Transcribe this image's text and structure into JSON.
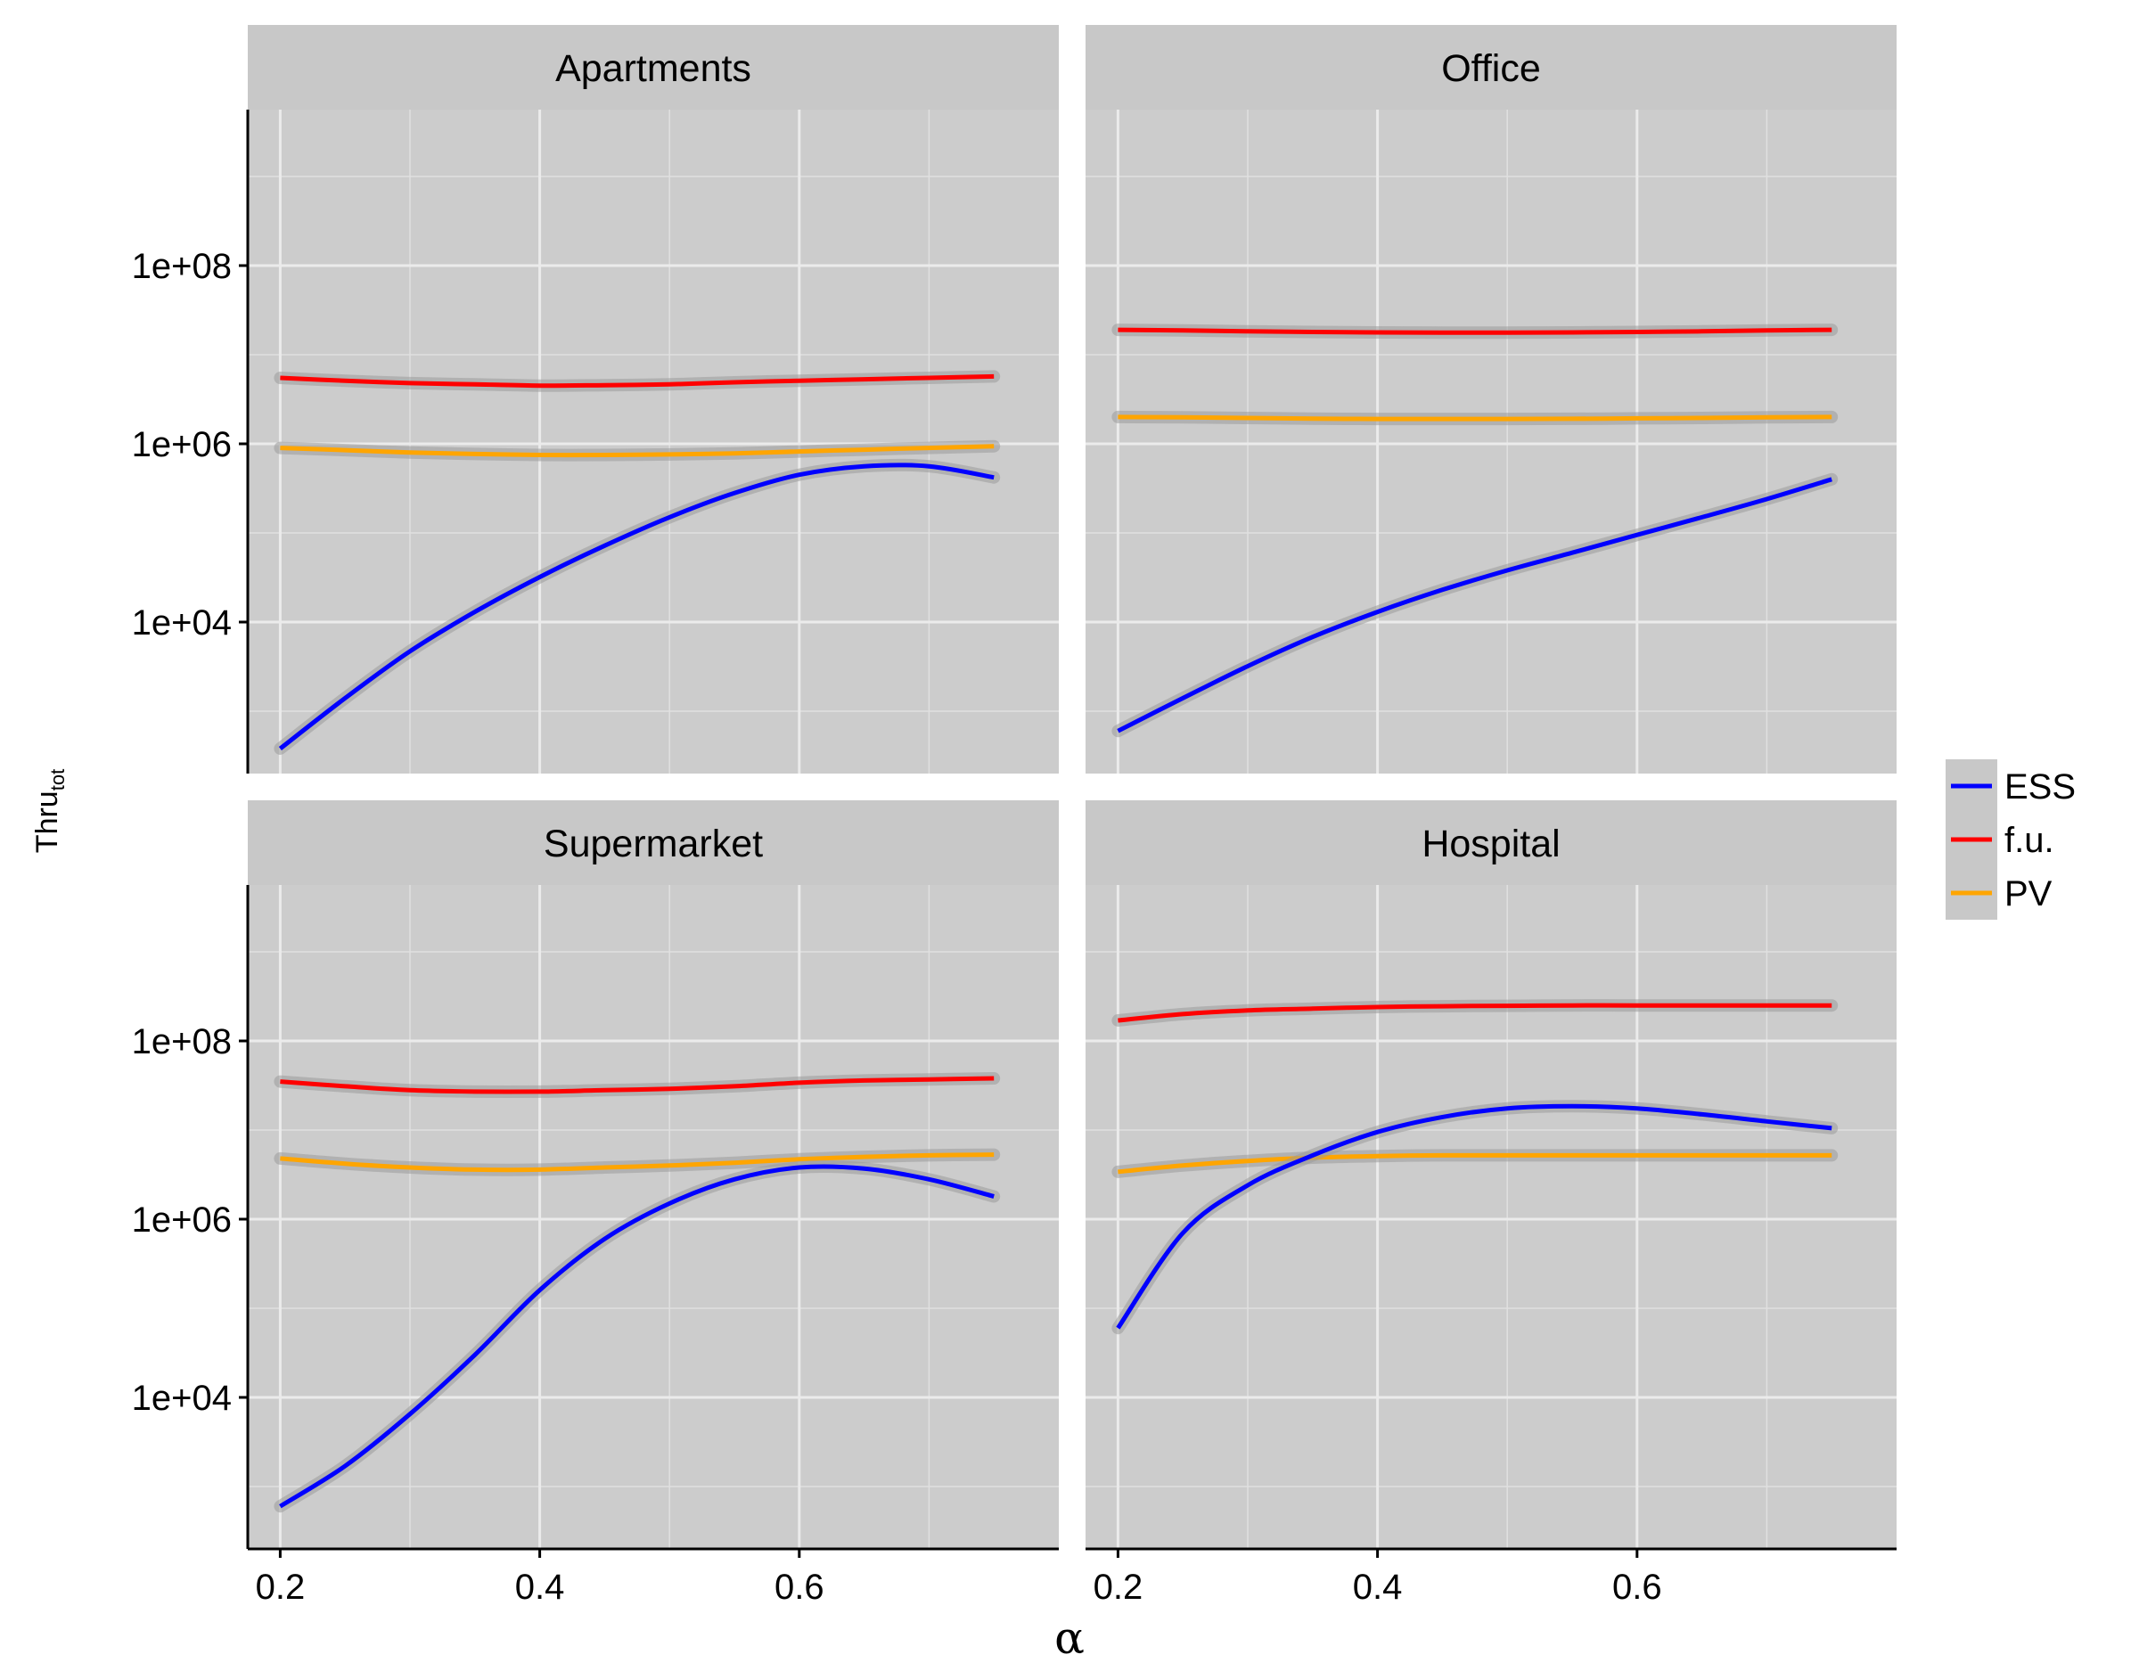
{
  "chart_data": {
    "type": "line",
    "xlabel": "α",
    "ylabel_main": "Thru",
    "ylabel_sub": "tot",
    "xlim": [
      0.175,
      0.8
    ],
    "ylim_log10": [
      2.3,
      9.75
    ],
    "y_scale": "log10",
    "x_ticks": [
      0.2,
      0.4,
      0.6
    ],
    "x_tick_labels": [
      "0.2",
      "0.4",
      "0.6"
    ],
    "y_ticks": [
      10000,
      1000000,
      100000000
    ],
    "y_tick_labels": [
      "1e+04",
      "1e+06",
      "1e+08"
    ],
    "grid": true,
    "legend_position": "right",
    "legend": [
      {
        "name": "ESS",
        "color": "#0000ff"
      },
      {
        "name": "f.u.",
        "color": "#ff0000"
      },
      {
        "name": "PV",
        "color": "#ffa500"
      }
    ],
    "panels": [
      {
        "title": "Apartments",
        "x": [
          0.2,
          0.25,
          0.3,
          0.35,
          0.4,
          0.45,
          0.5,
          0.55,
          0.6,
          0.65,
          0.7,
          0.75
        ],
        "series": [
          {
            "name": "f.u.",
            "values": [
              5500000,
              5100000,
              4800000,
              4650000,
              4500000,
              4550000,
              4650000,
              4900000,
              5100000,
              5300000,
              5500000,
              5700000
            ]
          },
          {
            "name": "PV",
            "values": [
              900000,
              850000,
              800000,
              770000,
              750000,
              750000,
              760000,
              780000,
              820000,
              860000,
              900000,
              940000
            ]
          },
          {
            "name": "ESS",
            "values": [
              380,
              1400,
              4700,
              13000,
              32000,
              72000,
              150000,
              280000,
              450000,
              560000,
              560000,
              420000
            ]
          }
        ]
      },
      {
        "title": "Office",
        "x": [
          0.2,
          0.25,
          0.3,
          0.35,
          0.4,
          0.45,
          0.5,
          0.55,
          0.6,
          0.65,
          0.7,
          0.75
        ],
        "series": [
          {
            "name": "f.u.",
            "values": [
              19000000,
              18700000,
              18300000,
              18000000,
              17800000,
              17700000,
              17700000,
              17800000,
              18000000,
              18300000,
              18700000,
              19000000
            ]
          },
          {
            "name": "PV",
            "values": [
              2000000,
              1980000,
              1950000,
              1920000,
              1900000,
              1900000,
              1900000,
              1910000,
              1930000,
              1950000,
              1980000,
              2000000
            ]
          },
          {
            "name": "ESS",
            "values": [
              600,
              1400,
              3200,
              6800,
              13000,
              23000,
              38000,
              60000,
              95000,
              150000,
              240000,
              400000
            ]
          }
        ]
      },
      {
        "title": "Supermarket",
        "x": [
          0.2,
          0.25,
          0.3,
          0.35,
          0.4,
          0.45,
          0.5,
          0.55,
          0.6,
          0.65,
          0.7,
          0.75
        ],
        "series": [
          {
            "name": "f.u.",
            "values": [
              35000000,
              31000000,
              28000000,
              27000000,
              27000000,
              28000000,
              29000000,
              31000000,
              34000000,
              36000000,
              37000000,
              38000000
            ]
          },
          {
            "name": "PV",
            "values": [
              4800000,
              4200000,
              3800000,
              3600000,
              3600000,
              3800000,
              4000000,
              4300000,
              4700000,
              5000000,
              5200000,
              5300000
            ]
          },
          {
            "name": "ESS",
            "values": [
              600,
              1700,
              6500,
              30000,
              160000,
              600000,
              1500000,
              2800000,
              3800000,
              3700000,
              2800000,
              1800000
            ]
          }
        ]
      },
      {
        "title": "Hospital",
        "x": [
          0.2,
          0.25,
          0.3,
          0.35,
          0.4,
          0.45,
          0.5,
          0.55,
          0.6,
          0.65,
          0.7,
          0.75
        ],
        "series": [
          {
            "name": "f.u.",
            "values": [
              170000000,
              200000000,
              220000000,
              230000000,
              240000000,
              245000000,
              248000000,
              250000000,
              250000000,
              250000000,
              250000000,
              250000000
            ]
          },
          {
            "name": "PV",
            "values": [
              3400000,
              4000000,
              4500000,
              4900000,
              5100000,
              5200000,
              5200000,
              5200000,
              5200000,
              5200000,
              5200000,
              5200000
            ]
          },
          {
            "name": "ESS",
            "values": [
              60000,
              700000,
              2400000,
              5200000,
              9500000,
              14000000,
              17500000,
              18500000,
              17500000,
              15000000,
              12500000,
              10500000
            ]
          }
        ]
      }
    ]
  }
}
